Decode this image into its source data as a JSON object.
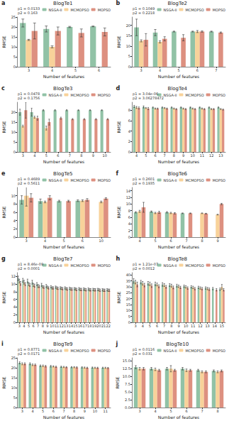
{
  "chart_data": [
    {
      "type": "bar",
      "label": "a",
      "title": "BlogTe1",
      "annotations": [
        "p1 = 0.0133",
        "p2 = 0.163"
      ],
      "x_label": "Number of features",
      "y_label": "RMSE",
      "legend": "top-right",
      "grid": false,
      "categories": [
        3,
        4,
        5,
        6
      ],
      "ylim": [
        0,
        25
      ],
      "yticks": [
        0,
        5,
        10,
        15,
        20,
        25
      ],
      "series": [
        {
          "name": "NSGA-II",
          "color": "#85bb9c",
          "values": [
            22,
            19,
            20,
            20.3
          ],
          "errors": [
            2,
            1.5,
            0.3,
            0.2
          ]
        },
        {
          "name": "MCMOPSO",
          "color": "#f7cd8f",
          "values": [
            13.5,
            10,
            null,
            null
          ],
          "errors": [
            0.3,
            0.5,
            null,
            null
          ]
        },
        {
          "name": "MOPSO",
          "color": "#d98472",
          "values": [
            18,
            18,
            17,
            17.5
          ],
          "errors": [
            4,
            2,
            2,
            2
          ]
        }
      ]
    },
    {
      "type": "bar",
      "label": "b",
      "title": "BlogTe2",
      "annotations": [
        "p1 = 0.1049",
        "p2 = 0.2218"
      ],
      "x_label": "Number of features",
      "y_label": "RMSE",
      "legend": "top-right",
      "grid": false,
      "categories": [
        3,
        4,
        5,
        6,
        7
      ],
      "ylim": [
        0,
        24
      ],
      "yticks": [
        0,
        5,
        10,
        15,
        20
      ],
      "series": [
        {
          "name": "NSGA-II",
          "color": "#85bb9c",
          "values": [
            19,
            16.5,
            17,
            17,
            17
          ],
          "errors": [
            4,
            1.5,
            0.2,
            0.2,
            0.2
          ]
        },
        {
          "name": "MCMOPSO",
          "color": "#f7cd8f",
          "values": [
            12.5,
            12,
            null,
            17,
            null
          ],
          "errors": [
            0.5,
            0.5,
            null,
            0.5,
            null
          ]
        },
        {
          "name": "MOPSO",
          "color": "#d98472",
          "values": [
            13,
            13.5,
            14,
            17,
            16.5
          ],
          "errors": [
            3,
            1,
            1.5,
            0.3,
            0.3
          ]
        }
      ]
    },
    {
      "type": "bar",
      "label": "c",
      "title": "BlogTe3",
      "annotations": [
        "p1 = 0.0478",
        "p2 = 0.1756"
      ],
      "x_label": "Number of features",
      "y_label": "RMSE",
      "legend": "top-right",
      "grid": false,
      "categories": [
        3,
        4,
        5,
        6,
        7,
        8,
        9,
        10
      ],
      "ylim": [
        0,
        25
      ],
      "yticks": [
        0,
        5,
        10,
        15,
        20
      ],
      "series": [
        {
          "name": "NSGA-II",
          "color": "#85bb9c",
          "values": [
            20,
            20,
            21,
            21,
            21,
            21,
            21,
            21
          ],
          "errors": [
            1.5,
            2,
            0.3,
            0.3,
            0.3,
            0.2,
            0.2,
            0.2
          ]
        },
        {
          "name": "MCMOPSO",
          "color": "#f7cd8f",
          "values": [
            13,
            17.5,
            12,
            null,
            null,
            null,
            null,
            null
          ],
          "errors": [
            0.5,
            0.5,
            1,
            null,
            null,
            null,
            null,
            null
          ]
        },
        {
          "name": "MOPSO",
          "color": "#d98472",
          "values": [
            21,
            17,
            15,
            17,
            16.5,
            16.5,
            16.5,
            16.5
          ],
          "errors": [
            4,
            1,
            1.5,
            0.5,
            0.3,
            0.3,
            0.3,
            0.3
          ]
        }
      ]
    },
    {
      "type": "bar",
      "label": "d",
      "title": "BlogTe4",
      "annotations": [
        "p1 = 3.04e-06",
        "p2 = 3.06278472"
      ],
      "x_label": "Number of features",
      "y_label": "RMSE",
      "legend": "top-right",
      "grid": false,
      "categories": [
        4,
        5,
        6,
        7,
        8,
        9,
        10,
        11,
        12,
        13
      ],
      "ylim": [
        0,
        9.5
      ],
      "yticks": [
        0,
        2,
        4,
        6,
        8
      ],
      "series": [
        {
          "name": "NSGA-II",
          "color": "#85bb9c",
          "values": [
            8.7,
            8.6,
            8.5,
            8.5,
            8.5,
            8.5,
            8.5,
            8.5,
            8.5,
            8.5
          ],
          "errors": [
            0.2,
            0.2,
            0.1,
            0.1,
            0.1,
            0.1,
            0.1,
            0.1,
            0.1,
            0.1
          ]
        },
        {
          "name": "MCMOPSO",
          "color": "#f7cd8f",
          "values": [
            8.5,
            8.4,
            8.3,
            8.4,
            8.3,
            8.3,
            8.3,
            8.3,
            8.2,
            8.2
          ],
          "errors": [
            0.2,
            0.1,
            0.1,
            0.1,
            0.1,
            0.1,
            0.1,
            0.1,
            0.1,
            0.1
          ]
        },
        {
          "name": "MOPSO",
          "color": "#d98472",
          "values": [
            8.4,
            8.3,
            8.3,
            8.3,
            8.2,
            8.2,
            8.2,
            8.2,
            8.2,
            8.1
          ],
          "errors": [
            0.2,
            0.2,
            0.1,
            0.1,
            0.1,
            0.1,
            0.1,
            0.1,
            0.1,
            0.1
          ]
        }
      ]
    },
    {
      "type": "bar",
      "label": "e",
      "title": "BlogTe5",
      "annotations": [
        "p1 = 0.4689",
        "p2 = 0.5611"
      ],
      "x_label": "Number of features",
      "y_label": "RMSE",
      "legend": "top-right",
      "grid": false,
      "categories": [
        3,
        4,
        5,
        6,
        10
      ],
      "ylim": [
        0,
        12
      ],
      "yticks": [
        0,
        2,
        4,
        6,
        8,
        10
      ],
      "series": [
        {
          "name": "NSGA-II",
          "color": "#85bb9c",
          "values": [
            9,
            8.7,
            8.7,
            8.8,
            null
          ],
          "errors": [
            1,
            0.5,
            0.2,
            0.2,
            null
          ]
        },
        {
          "name": "MCMOPSO",
          "color": "#f7cd8f",
          "values": [
            10,
            8.5,
            null,
            8.8,
            8.5
          ],
          "errors": [
            2.5,
            0.2,
            null,
            0.2,
            0.2
          ]
        },
        {
          "name": "MOPSO",
          "color": "#d98472",
          "values": [
            9.5,
            9.5,
            8.7,
            9,
            9.3
          ],
          "errors": [
            1,
            0.5,
            0.2,
            0.3,
            0.2
          ]
        }
      ]
    },
    {
      "type": "bar",
      "label": "f",
      "title": "BlogTe6",
      "annotations": [
        "p1 = 0.2601",
        "p2 = 0.1935"
      ],
      "x_label": "Number of features",
      "y_label": "RMSE",
      "legend": "top-right",
      "grid": false,
      "categories": [
        4,
        5,
        6,
        7,
        8,
        9
      ],
      "ylim": [
        0,
        15
      ],
      "yticks": [
        0,
        2,
        4,
        6,
        8,
        10,
        12,
        14
      ],
      "series": [
        {
          "name": "NSGA-II",
          "color": "#85bb9c",
          "values": [
            7.5,
            7.7,
            7.5,
            7.2,
            null,
            null
          ],
          "errors": [
            0.2,
            0.2,
            0.2,
            0.1,
            null,
            null
          ]
        },
        {
          "name": "MCMOPSO",
          "color": "#f7cd8f",
          "values": [
            7.8,
            7.3,
            7.3,
            null,
            7.2,
            6.8
          ],
          "errors": [
            0.3,
            0.2,
            0.2,
            null,
            0.1,
            0.1
          ]
        },
        {
          "name": "MOPSO",
          "color": "#d98472",
          "values": [
            9,
            7.5,
            7.2,
            7.2,
            7.1,
            10
          ],
          "errors": [
            1.5,
            0.3,
            0.2,
            0.1,
            0.1,
            0.2
          ]
        }
      ]
    },
    {
      "type": "bar",
      "label": "g",
      "title": "BlogTe7",
      "annotations": [
        "p1 = 8.46e-09",
        "p2 = 0.0001"
      ],
      "x_label": "Number of features",
      "y_label": "RMSE",
      "legend": "top-right",
      "grid": false,
      "categories": [
        3,
        4,
        5,
        6,
        7,
        8,
        9,
        10,
        11,
        12,
        13,
        14,
        15,
        16,
        17,
        18,
        19,
        20,
        21,
        22
      ],
      "ylim": [
        0,
        13
      ],
      "yticks": [
        0,
        2,
        4,
        6,
        8,
        10,
        12
      ],
      "series": [
        {
          "name": "NSGA-II",
          "color": "#85bb9c",
          "values": [
            11.5,
            11,
            10.8,
            10.5,
            10,
            9.8,
            9.5,
            9.3,
            9.2,
            9,
            9,
            8.9,
            8.8,
            8.8,
            8.7,
            8.7,
            8.6,
            8.6,
            8.5,
            8.5
          ],
          "errors": [
            0.6,
            0.5,
            0.5,
            0.5,
            0.4,
            0.4,
            0.4,
            0.3,
            0.3,
            0.3,
            0.3,
            0.3,
            0.3,
            0.3,
            0.3,
            0.3,
            0.3,
            0.3,
            0.3,
            0.3
          ]
        },
        {
          "name": "MCMOPSO",
          "color": "#f7cd8f",
          "values": [
            10.8,
            10.5,
            10,
            9.8,
            9.5,
            9.3,
            9.2,
            9,
            9,
            8.9,
            8.8,
            8.7,
            8.7,
            8.6,
            8.6,
            8.5,
            8.5,
            8.5,
            8.4,
            8.4
          ],
          "errors": [
            0.5,
            0.5,
            0.4,
            0.4,
            0.4,
            0.3,
            0.3,
            0.3,
            0.3,
            0.3,
            0.3,
            0.3,
            0.3,
            0.3,
            0.3,
            0.3,
            0.3,
            0.3,
            0.3,
            0.3
          ]
        },
        {
          "name": "MOPSO",
          "color": "#d98472",
          "values": [
            10.2,
            10,
            9.8,
            9.6,
            9.4,
            9.2,
            9,
            9,
            8.9,
            8.8,
            8.7,
            8.7,
            8.6,
            8.6,
            8.5,
            8.5,
            8.5,
            8.4,
            8.4,
            8.4
          ],
          "errors": [
            0.5,
            0.4,
            0.4,
            0.4,
            0.3,
            0.3,
            0.3,
            0.3,
            0.3,
            0.3,
            0.3,
            0.3,
            0.3,
            0.3,
            0.3,
            0.3,
            0.3,
            0.3,
            0.3,
            0.3
          ]
        }
      ]
    },
    {
      "type": "bar",
      "label": "h",
      "title": "BlogTe8",
      "annotations": [
        "p1 = 1.21e-07",
        "p2 = 0.0012"
      ],
      "x_label": "Number of features",
      "y_label": "RMSE",
      "legend": "top-right",
      "grid": false,
      "categories": [
        3,
        4,
        5,
        6,
        7,
        8,
        9,
        10,
        11,
        12,
        13,
        14,
        15
      ],
      "ylim": [
        0,
        42
      ],
      "yticks": [
        0,
        5,
        10,
        15,
        20,
        25,
        30,
        35,
        40
      ],
      "series": [
        {
          "name": "NSGA-II",
          "color": "#85bb9c",
          "values": [
            35,
            34,
            33,
            32.5,
            32,
            31.5,
            31,
            30.5,
            30,
            29.5,
            29,
            28.5,
            28
          ],
          "errors": [
            2,
            1.5,
            1.5,
            1.5,
            1.5,
            1.2,
            1.2,
            1,
            1,
            1,
            1,
            1,
            1
          ]
        },
        {
          "name": "MCMOPSO",
          "color": "#f7cd8f",
          "values": [
            34,
            33,
            32.5,
            32,
            31.5,
            31,
            30.5,
            30,
            29.5,
            29,
            28.5,
            null,
            30
          ],
          "errors": [
            1.5,
            1.5,
            1.5,
            1.2,
            1.2,
            1.2,
            1,
            1,
            1,
            1,
            1,
            null,
            2
          ]
        },
        {
          "name": "MOPSO",
          "color": "#d98472",
          "values": [
            32,
            31.5,
            31,
            30.5,
            30,
            29.5,
            29.5,
            29,
            28.5,
            28.5,
            28,
            27.5,
            27.5
          ],
          "errors": [
            2,
            1.5,
            1.5,
            1.2,
            1.2,
            1.2,
            1,
            1,
            1,
            1,
            1,
            1,
            1
          ]
        }
      ]
    },
    {
      "type": "bar",
      "label": "i",
      "title": "BlogTe9",
      "annotations": [
        "p1 = 0.8771",
        "p2 = 0.0171"
      ],
      "x_label": "Number of features",
      "y_label": "RMSE",
      "legend": "top-right",
      "grid": false,
      "categories": [
        3,
        4,
        5,
        6,
        7,
        8,
        9,
        10,
        11
      ],
      "ylim": [
        0,
        25
      ],
      "yticks": [
        0,
        5,
        10,
        15,
        20,
        25
      ],
      "series": [
        {
          "name": "NSGA-II",
          "color": "#85bb9c",
          "values": [
            22.5,
            22,
            21,
            20.8,
            20.5,
            20.3,
            20.2,
            20.1,
            20
          ],
          "errors": [
            0.5,
            0.5,
            0.4,
            0.4,
            0.3,
            0.3,
            0.3,
            0.3,
            0.3
          ]
        },
        {
          "name": "MCMOPSO",
          "color": "#f7cd8f",
          "values": [
            22,
            21.5,
            21,
            20.7,
            20.4,
            20.3,
            20.1,
            20,
            20
          ],
          "errors": [
            0.5,
            0.4,
            0.4,
            0.3,
            0.3,
            0.3,
            0.3,
            0.3,
            0.3
          ]
        },
        {
          "name": "MOPSO",
          "color": "#d98472",
          "values": [
            22,
            21.5,
            20.8,
            20.5,
            20.3,
            20.2,
            20,
            20,
            19.9
          ],
          "errors": [
            0.5,
            0.4,
            0.4,
            0.3,
            0.3,
            0.3,
            0.3,
            0.3,
            0.3
          ]
        }
      ]
    },
    {
      "type": "bar",
      "label": "j",
      "title": "BlogTe10",
      "annotations": [
        "p1 = 0.0116",
        "p2 = 0.031"
      ],
      "x_label": "Number of features",
      "y_label": "RMSE",
      "legend": "top-right",
      "grid": false,
      "categories": [
        3,
        4,
        5,
        6,
        7,
        8
      ],
      "ylim": [
        0,
        16
      ],
      "yticks": [
        {
          "value": 0,
          "label": "0.0"
        },
        {
          "value": 2.5,
          "label": "2.5"
        },
        {
          "value": 5,
          "label": "5.0"
        },
        {
          "value": 7.5,
          "label": "7.5"
        },
        {
          "value": 10,
          "label": "10.0"
        },
        {
          "value": 12.5,
          "label": "12.5"
        },
        {
          "value": 15,
          "label": "15.0"
        }
      ],
      "series": [
        {
          "name": "NSGA-II",
          "color": "#85bb9c",
          "values": [
            13,
            12.5,
            12.5,
            12.5,
            12,
            11.8
          ],
          "errors": [
            0.5,
            0.4,
            0.4,
            0.4,
            0.3,
            0.3
          ]
        },
        {
          "name": "MCMOPSO",
          "color": "#f7cd8f",
          "values": [
            12.5,
            12.3,
            12.5,
            12,
            11.5,
            11.5
          ],
          "errors": [
            0.4,
            0.4,
            1,
            0.4,
            0.3,
            0.3
          ]
        },
        {
          "name": "MOPSO",
          "color": "#d98472",
          "values": [
            12.5,
            12,
            12,
            12,
            11.5,
            11.8
          ],
          "errors": [
            0.4,
            0.3,
            0.3,
            0.3,
            0.3,
            0.3
          ]
        }
      ]
    }
  ]
}
